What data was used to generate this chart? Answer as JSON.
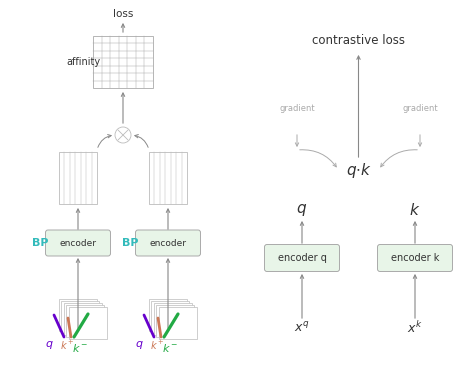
{
  "bg_color": "#ffffff",
  "encoder_box_color": "#e8f5e8",
  "encoder_box_edge": "#aaaaaa",
  "arrow_color": "#888888",
  "bp_color": "#33bbbb",
  "q_color": "#6600cc",
  "kplus_color": "#cc7755",
  "kminus_color": "#22aa44",
  "grid_color": "#aaaaaa",
  "featuremap_color": "#bbbbbb",
  "text_color": "#333333",
  "gray_text": "#aaaaaa",
  "title_right": "contrastive loss",
  "label_loss": "loss",
  "label_affinity": "affinity",
  "label_bp": "BP",
  "label_encoder": "encoder",
  "label_encoder_q": "encoder q",
  "label_encoder_k": "encoder k",
  "label_gradient": "gradient"
}
